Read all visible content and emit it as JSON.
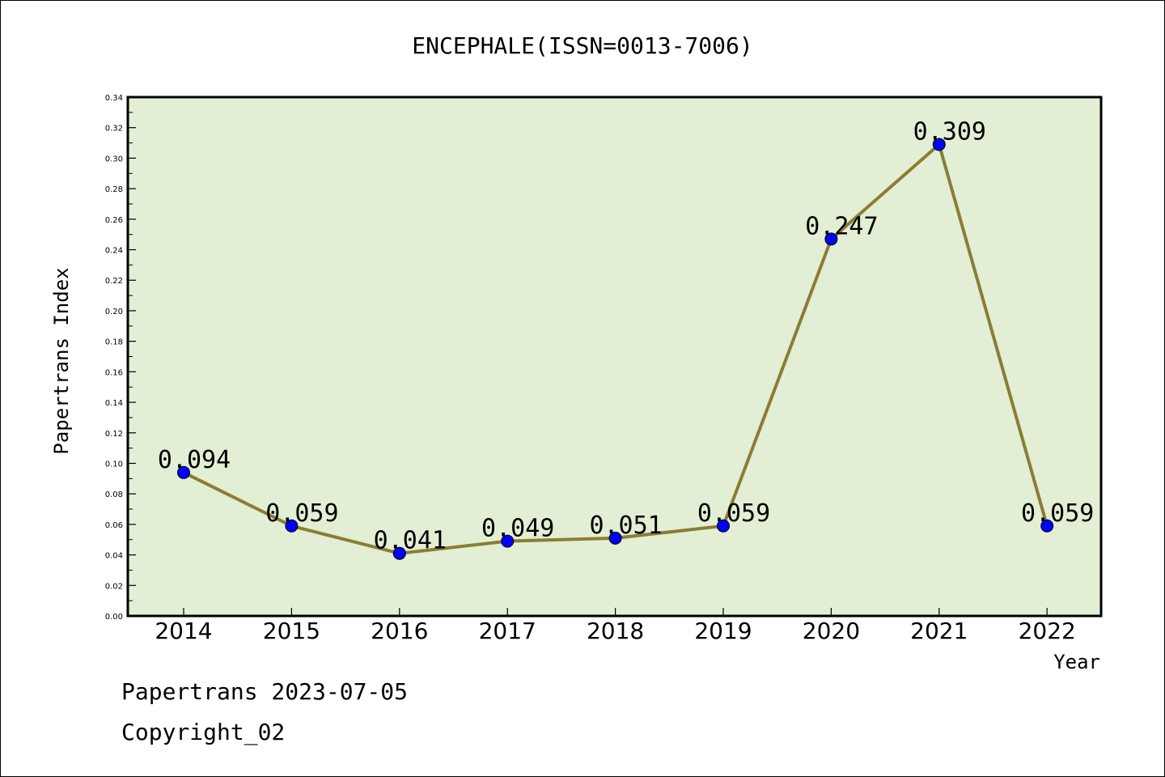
{
  "chart_data": {
    "type": "line",
    "title": "ENCEPHALE(ISSN=0013-7006)",
    "xlabel": "Year",
    "ylabel": "Papertrans Index",
    "categories": [
      "2014",
      "2015",
      "2016",
      "2017",
      "2018",
      "2019",
      "2020",
      "2021",
      "2022"
    ],
    "values": [
      0.094,
      0.059,
      0.041,
      0.049,
      0.051,
      0.059,
      0.247,
      0.309,
      0.059
    ],
    "value_labels": [
      "0.094",
      "0.059",
      "0.041",
      "0.049",
      "0.051",
      "0.059",
      "0.247",
      "0.309",
      "0.059"
    ],
    "ylim": [
      0,
      0.34
    ],
    "yticks": [
      "0.00",
      "0.02",
      "0.04",
      "0.06",
      "0.08",
      "0.10",
      "0.12",
      "0.14",
      "0.16",
      "0.18",
      "0.20",
      "0.22",
      "0.24",
      "0.26",
      "0.28",
      "0.30",
      "0.32",
      "0.34"
    ],
    "grid": false,
    "colors": {
      "plot_background": "#e2efd5",
      "line": "#8b7d33",
      "marker": "#0000ff"
    }
  },
  "footer": {
    "date_text": "Papertrans 2023-07-05",
    "copyright_text": "Copyright_02"
  }
}
